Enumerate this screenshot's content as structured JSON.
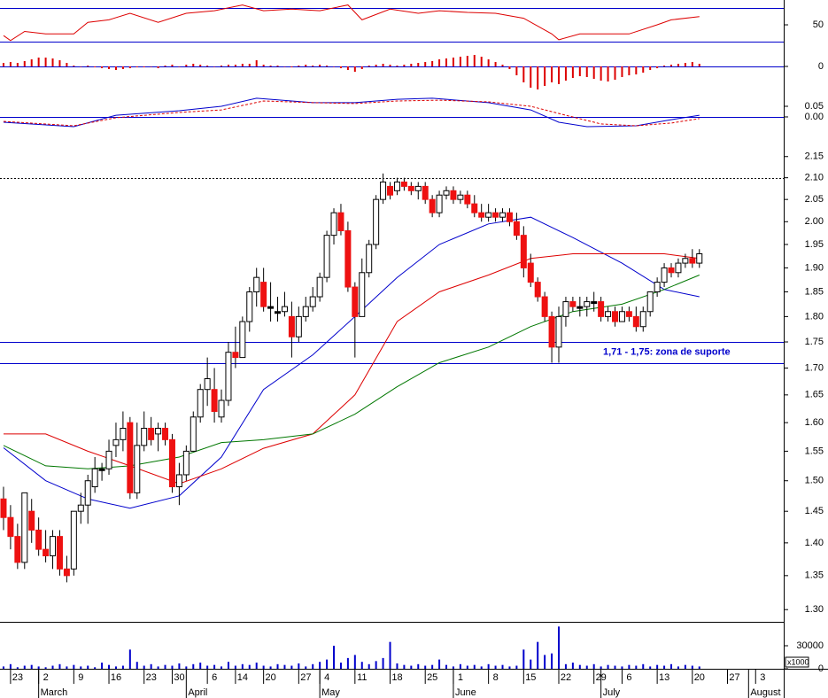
{
  "chart_data": [
    {
      "type": "line",
      "color": "#dd0000",
      "levels": [
        30,
        70
      ],
      "level_color": "#0000cc",
      "ylim": [
        19,
        80
      ],
      "yticks": [
        50
      ],
      "x": [
        0,
        1,
        3,
        6,
        10,
        12,
        15,
        18,
        22,
        26,
        30,
        34,
        37,
        41,
        45,
        49,
        51,
        55,
        59,
        62,
        66,
        70,
        74,
        78,
        79,
        82,
        85,
        89,
        93,
        95,
        99
      ],
      "values": [
        37,
        31,
        42,
        39,
        39,
        53,
        56,
        64,
        53,
        64,
        67,
        74,
        67,
        69,
        67,
        74,
        56,
        69,
        64,
        67,
        65,
        64,
        58,
        39,
        32,
        39,
        39,
        39,
        50,
        56,
        60
      ]
    },
    {
      "type": "bar",
      "color": "#dd0000",
      "levels": [
        0
      ],
      "level_color": "#0000cc",
      "ylim": [
        -0.028,
        0.018
      ],
      "yticks": [
        0
      ],
      "values": [
        0.004,
        0.005,
        0.004,
        0.006,
        0.008,
        0.01,
        0.01,
        0.009,
        0.007,
        0.004,
        0.001,
        0,
        0.001,
        -0.001,
        -0.002,
        -0.003,
        -0.004,
        -0.003,
        -0.002,
        -0.001,
        -0.001,
        0,
        -0.002,
        0.001,
        0.002,
        0,
        0.002,
        0.003,
        0.002,
        0.001,
        0,
        0.001,
        0.002,
        0.002,
        0.003,
        0.003,
        0.007,
        0.002,
        0.001,
        0.001,
        0,
        -0.001,
        0.001,
        0.002,
        0.001,
        0.002,
        0.001,
        0,
        -0.002,
        -0.004,
        -0.006,
        -0.003,
        0.001,
        0.002,
        0.003,
        0.002,
        0.001,
        0.002,
        0.003,
        0.004,
        0.005,
        0.006,
        0.008,
        0.009,
        0.01,
        0.011,
        0.012,
        0.013,
        0.011,
        0.008,
        0.005,
        0.002,
        -0.003,
        -0.01,
        -0.018,
        -0.024,
        -0.026,
        -0.022,
        -0.018,
        -0.02,
        -0.016,
        -0.013,
        -0.011,
        -0.012,
        -0.014,
        -0.016,
        -0.017,
        -0.015,
        -0.012,
        -0.01,
        -0.009,
        -0.007,
        -0.004,
        -0.002,
        0.001,
        0.002,
        0.003,
        0.004,
        0.005,
        0.003
      ]
    },
    {
      "type": "line",
      "levels": [
        0
      ],
      "level_color": "#0000cc",
      "ylim": [
        -0.117,
        0.121
      ],
      "yticks": [
        {
          "value": 0.05,
          "label": "0.05"
        },
        {
          "value": 0,
          "label": "0.00"
        }
      ],
      "series": [
        {
          "color": "#0000cc",
          "x": [
            0,
            10,
            16,
            25,
            31,
            36,
            44,
            50,
            56,
            61,
            69,
            75,
            79,
            83,
            90,
            95,
            99
          ],
          "values": [
            -0.025,
            -0.046,
            0.008,
            0.029,
            0.05,
            0.088,
            0.067,
            0.067,
            0.083,
            0.088,
            0.067,
            0.033,
            -0.025,
            -0.046,
            -0.042,
            -0.013,
            0.008
          ]
        },
        {
          "color": "#dd0000",
          "dashed": true,
          "x": [
            0,
            10,
            16,
            25,
            31,
            37,
            44,
            50,
            56,
            62,
            69,
            75,
            80,
            85,
            90,
            95,
            99
          ],
          "values": [
            -0.021,
            -0.042,
            -0.004,
            0.021,
            0.033,
            0.075,
            0.067,
            0.063,
            0.075,
            0.079,
            0.071,
            0.05,
            0.008,
            -0.033,
            -0.042,
            -0.029,
            -0.008
          ]
        }
      ]
    },
    {
      "type": "candlestick",
      "log": true,
      "ylim": [
        1.285,
        2.175
      ],
      "yticks": [
        {
          "value": 1.3,
          "label": "1.30"
        },
        1.35,
        {
          "value": 1.4,
          "label": "1.40"
        },
        1.45,
        {
          "value": 1.5,
          "label": "1.50"
        },
        1.55,
        {
          "value": 1.6,
          "label": "1.60"
        },
        1.65,
        {
          "value": 1.7,
          "label": "1.70"
        },
        1.75,
        {
          "value": 1.8,
          "label": "1.80"
        },
        1.85,
        {
          "value": 1.9,
          "label": "1.90"
        },
        1.95,
        {
          "value": 2,
          "label": "2.00"
        },
        2.05,
        {
          "value": 2.1,
          "label": "2.10"
        },
        2.15
      ],
      "up_color": "#ffffff",
      "down_color": "#ee1111",
      "open": [
        1.47,
        1.44,
        1.41,
        1.37,
        1.45,
        1.42,
        1.39,
        1.38,
        1.41,
        1.36,
        1.36,
        1.45,
        1.46,
        1.49,
        1.52,
        1.52,
        1.56,
        1.57,
        1.6,
        1.48,
        1.56,
        1.59,
        1.58,
        1.59,
        1.57,
        1.49,
        1.51,
        1.55,
        1.61,
        1.66,
        1.66,
        1.61,
        1.64,
        1.73,
        1.72,
        1.79,
        1.85,
        1.87,
        1.82,
        1.81,
        1.81,
        1.8,
        1.76,
        1.8,
        1.82,
        1.84,
        1.88,
        1.97,
        2.02,
        1.98,
        1.86,
        1.8,
        1.89,
        1.95,
        2.05,
        2.08,
        2.07,
        2.09,
        2.08,
        2.07,
        2.08,
        2.05,
        2.02,
        2.06,
        2.07,
        2.05,
        2.06,
        2.04,
        2.02,
        2.01,
        2.02,
        2.01,
        2.02,
        2.0,
        1.97,
        1.91,
        1.87,
        1.84,
        1.8,
        1.74,
        1.8,
        1.83,
        1.82,
        1.82,
        1.83,
        1.83,
        1.8,
        1.81,
        1.79,
        1.81,
        1.8,
        1.78,
        1.81,
        1.85,
        1.87,
        1.9,
        1.89,
        1.91,
        1.92,
        1.91
      ],
      "high": [
        1.49,
        1.46,
        1.43,
        1.48,
        1.47,
        1.44,
        1.42,
        1.42,
        1.42,
        1.38,
        1.45,
        1.48,
        1.51,
        1.54,
        1.53,
        1.57,
        1.6,
        1.62,
        1.61,
        1.6,
        1.62,
        1.61,
        1.6,
        1.6,
        1.58,
        1.53,
        1.56,
        1.62,
        1.67,
        1.72,
        1.7,
        1.66,
        1.75,
        1.78,
        1.8,
        1.86,
        1.9,
        1.9,
        1.87,
        1.84,
        1.85,
        1.83,
        1.82,
        1.84,
        1.86,
        1.89,
        1.98,
        2.03,
        2.04,
        2.0,
        1.87,
        1.92,
        1.96,
        2.06,
        2.11,
        2.09,
        2.1,
        2.1,
        2.09,
        2.09,
        2.09,
        2.06,
        2.07,
        2.08,
        2.08,
        2.07,
        2.07,
        2.06,
        2.04,
        2.04,
        2.03,
        2.03,
        2.03,
        2.02,
        1.99,
        1.93,
        1.88,
        1.85,
        1.81,
        1.82,
        1.84,
        1.84,
        1.84,
        1.84,
        1.85,
        1.84,
        1.82,
        1.82,
        1.82,
        1.82,
        1.82,
        1.82,
        1.85,
        1.88,
        1.91,
        1.91,
        1.92,
        1.93,
        1.94,
        1.94
      ],
      "low": [
        1.42,
        1.39,
        1.36,
        1.36,
        1.4,
        1.38,
        1.37,
        1.36,
        1.35,
        1.34,
        1.35,
        1.43,
        1.43,
        1.48,
        1.5,
        1.51,
        1.54,
        1.55,
        1.47,
        1.47,
        1.55,
        1.56,
        1.55,
        1.56,
        1.48,
        1.46,
        1.5,
        1.55,
        1.6,
        1.63,
        1.6,
        1.6,
        1.63,
        1.7,
        1.72,
        1.77,
        1.82,
        1.81,
        1.79,
        1.79,
        1.8,
        1.72,
        1.75,
        1.79,
        1.81,
        1.83,
        1.87,
        1.95,
        1.97,
        1.85,
        1.72,
        1.8,
        1.88,
        1.94,
        2.04,
        2.05,
        2.06,
        2.07,
        2.06,
        2.05,
        2.04,
        2.01,
        2.01,
        2.05,
        2.04,
        2.04,
        2.03,
        2.01,
        2.0,
        2.0,
        2.0,
        2.0,
        1.99,
        1.96,
        1.88,
        1.86,
        1.83,
        1.79,
        1.71,
        1.71,
        1.78,
        1.81,
        1.8,
        1.8,
        1.81,
        1.79,
        1.79,
        1.78,
        1.79,
        1.79,
        1.77,
        1.77,
        1.8,
        1.84,
        1.86,
        1.88,
        1.88,
        1.9,
        1.9,
        1.9
      ],
      "close": [
        1.44,
        1.41,
        1.37,
        1.48,
        1.42,
        1.39,
        1.38,
        1.41,
        1.36,
        1.35,
        1.45,
        1.46,
        1.5,
        1.52,
        1.52,
        1.55,
        1.57,
        1.59,
        1.48,
        1.56,
        1.59,
        1.57,
        1.59,
        1.57,
        1.49,
        1.51,
        1.55,
        1.61,
        1.66,
        1.68,
        1.62,
        1.64,
        1.73,
        1.72,
        1.79,
        1.85,
        1.88,
        1.82,
        1.82,
        1.81,
        1.82,
        1.76,
        1.8,
        1.82,
        1.84,
        1.88,
        1.97,
        2.02,
        1.98,
        1.86,
        1.8,
        1.89,
        1.95,
        2.05,
        2.09,
        2.06,
        2.09,
        2.08,
        2.07,
        2.08,
        2.05,
        2.02,
        2.06,
        2.07,
        2.05,
        2.06,
        2.04,
        2.02,
        2.01,
        2.02,
        2.01,
        2.02,
        2.0,
        1.97,
        1.9,
        1.87,
        1.84,
        1.8,
        1.74,
        1.8,
        1.83,
        1.82,
        1.82,
        1.83,
        1.83,
        1.8,
        1.81,
        1.79,
        1.81,
        1.8,
        1.78,
        1.81,
        1.85,
        1.87,
        1.9,
        1.89,
        1.91,
        1.92,
        1.91,
        1.93
      ],
      "moving_averages": [
        {
          "color": "#0000cc",
          "x": [
            0,
            6,
            12,
            18,
            25,
            31,
            37,
            44,
            50,
            56,
            62,
            69,
            75,
            81,
            88,
            94,
            99
          ],
          "values": [
            1.556,
            1.5,
            1.47,
            1.455,
            1.475,
            1.54,
            1.66,
            1.725,
            1.8,
            1.88,
            1.95,
            1.995,
            2.01,
            1.965,
            1.91,
            1.855,
            1.84
          ]
        },
        {
          "color": "#dd0000",
          "x": [
            0,
            6,
            12,
            18,
            25,
            31,
            37,
            44,
            50,
            56,
            62,
            69,
            75,
            81,
            88,
            94,
            99
          ],
          "values": [
            1.58,
            1.58,
            1.55,
            1.525,
            1.495,
            1.52,
            1.555,
            1.58,
            1.65,
            1.79,
            1.85,
            1.885,
            1.92,
            1.93,
            1.93,
            1.93,
            1.92
          ]
        },
        {
          "color": "#007700",
          "x": [
            0,
            6,
            12,
            18,
            25,
            31,
            37,
            44,
            50,
            56,
            62,
            69,
            75,
            81,
            88,
            94,
            99
          ],
          "values": [
            1.56,
            1.525,
            1.52,
            1.525,
            1.54,
            1.565,
            1.57,
            1.58,
            1.615,
            1.665,
            1.71,
            1.74,
            1.78,
            1.81,
            1.825,
            1.855,
            1.885
          ]
        }
      ],
      "hlines": [
        1.71,
        1.75
      ],
      "dotted_hlines": [
        2.1
      ],
      "line_color": "#0000cc",
      "annotation": "1,71 - 1,75: zona de suporte"
    },
    {
      "type": "bar",
      "color": "#0000cc",
      "ylim": [
        0,
        60000
      ],
      "yticks": [
        0,
        30000
      ],
      "unit_label": "x1000",
      "values": [
        3000,
        6000,
        2000,
        4000,
        5000,
        3000,
        2000,
        4000,
        6000,
        3000,
        5000,
        3000,
        4000,
        2000,
        8000,
        5000,
        3000,
        4000,
        25000,
        9000,
        4000,
        6000,
        3000,
        5000,
        4000,
        7000,
        3000,
        6000,
        8000,
        4000,
        5000,
        3000,
        9000,
        4000,
        6000,
        5000,
        8000,
        4000,
        3000,
        6000,
        5000,
        4000,
        7000,
        3000,
        6000,
        9000,
        12000,
        30000,
        8000,
        14000,
        18000,
        9000,
        6000,
        10000,
        14000,
        35000,
        7000,
        5000,
        4000,
        6000,
        4000,
        5000,
        12000,
        5000,
        3000,
        6000,
        4000,
        5000,
        3000,
        6000,
        4000,
        5000,
        3000,
        4000,
        25000,
        12000,
        35000,
        18000,
        20000,
        55000,
        6000,
        8000,
        5000,
        4000,
        6000,
        3000,
        5000,
        4000,
        3000,
        5000,
        4000,
        6000,
        3000,
        5000,
        4000,
        6000,
        3000,
        5000,
        4000,
        3000
      ],
      "xlim": [
        -0.5,
        111
      ],
      "xticks": [
        {
          "value": 1,
          "label": "23"
        },
        {
          "value": 5,
          "label": "2"
        },
        {
          "value": 10,
          "label": "9"
        },
        {
          "value": 15,
          "label": "16"
        },
        {
          "value": 20,
          "label": "23"
        },
        {
          "value": 24,
          "label": "30"
        },
        {
          "value": 29,
          "label": "6"
        },
        {
          "value": 33,
          "label": "14"
        },
        {
          "value": 37,
          "label": "20"
        },
        {
          "value": 42,
          "label": "27"
        },
        {
          "value": 45,
          "label": "4"
        },
        {
          "value": 50,
          "label": "11"
        },
        {
          "value": 55,
          "label": "18"
        },
        {
          "value": 60,
          "label": "25"
        },
        {
          "value": 64,
          "label": "1"
        },
        {
          "value": 69,
          "label": "8"
        },
        {
          "value": 74,
          "label": "15"
        },
        {
          "value": 79,
          "label": "22"
        },
        {
          "value": 84,
          "label": "29"
        },
        {
          "value": 88,
          "label": "6"
        },
        {
          "value": 93,
          "label": "13"
        },
        {
          "value": 98,
          "label": "20"
        },
        {
          "value": 103,
          "label": "27"
        },
        {
          "value": 107,
          "label": "3"
        }
      ],
      "month_ticks": [
        {
          "value": 5,
          "label": "March"
        },
        {
          "value": 26,
          "label": "April"
        },
        {
          "value": 45,
          "label": "May"
        },
        {
          "value": 64,
          "label": "June"
        },
        {
          "value": 85,
          "label": "July"
        },
        {
          "value": 106,
          "label": "August"
        }
      ]
    }
  ]
}
